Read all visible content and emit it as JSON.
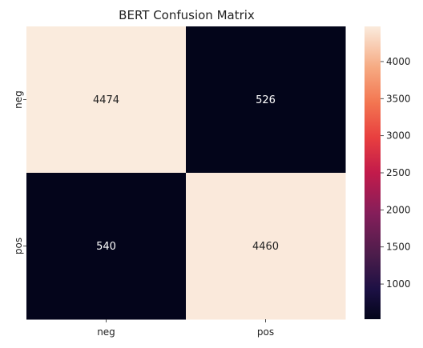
{
  "chart_data": {
    "type": "heatmap",
    "title": "BERT Confusion Matrix",
    "xlabel": "",
    "ylabel": "",
    "x_categories": [
      "neg",
      "pos"
    ],
    "y_categories": [
      "neg",
      "pos"
    ],
    "values": [
      [
        4474,
        526
      ],
      [
        540,
        4460
      ]
    ],
    "colormap": "rocket",
    "colorbar": {
      "min": 526,
      "max": 4474,
      "ticks": [
        1000,
        1500,
        2000,
        2500,
        3000,
        3500,
        4000
      ]
    },
    "colors": {
      "low": "#03051a",
      "high": "#faebdd",
      "text_on_low": "#ffffff",
      "text_on_high": "#222222"
    }
  }
}
